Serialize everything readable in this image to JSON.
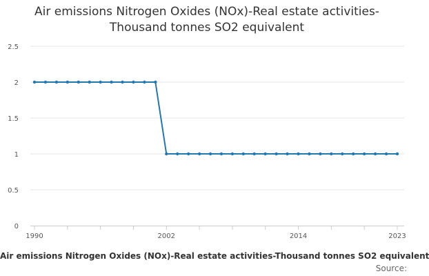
{
  "chart_data": {
    "type": "line",
    "title_lines": [
      "Air emissions Nitrogen Oxides (NOx)-Real estate activities-",
      "Thousand tonnes SO2 equivalent"
    ],
    "footer_title": "Air emissions Nitrogen Oxides (NOx)-Real estate activities-Thousand tonnes SO2 equivalent",
    "source_label": "Source:",
    "x": [
      1990,
      1991,
      1992,
      1993,
      1994,
      1995,
      1996,
      1997,
      1998,
      1999,
      2000,
      2001,
      2002,
      2003,
      2004,
      2005,
      2006,
      2007,
      2008,
      2009,
      2010,
      2011,
      2012,
      2013,
      2014,
      2015,
      2016,
      2017,
      2018,
      2019,
      2020,
      2021,
      2022,
      2023
    ],
    "series": [
      {
        "values": [
          2,
          2,
          2,
          2,
          2,
          2,
          2,
          2,
          2,
          2,
          2,
          2,
          1,
          1,
          1,
          1,
          1,
          1,
          1,
          1,
          1,
          1,
          1,
          1,
          1,
          1,
          1,
          1,
          1,
          1,
          1,
          1,
          1,
          1
        ]
      }
    ],
    "x_tick_labels": [
      "1990",
      "2002",
      "2014",
      "2023"
    ],
    "y_tick_labels": [
      "0",
      "0.5",
      "1",
      "1.5",
      "2",
      "2.5"
    ],
    "xlim": [
      1990,
      2023
    ],
    "ylim": [
      0,
      2.5
    ],
    "grid": true,
    "line_color": "#1f77b4"
  }
}
